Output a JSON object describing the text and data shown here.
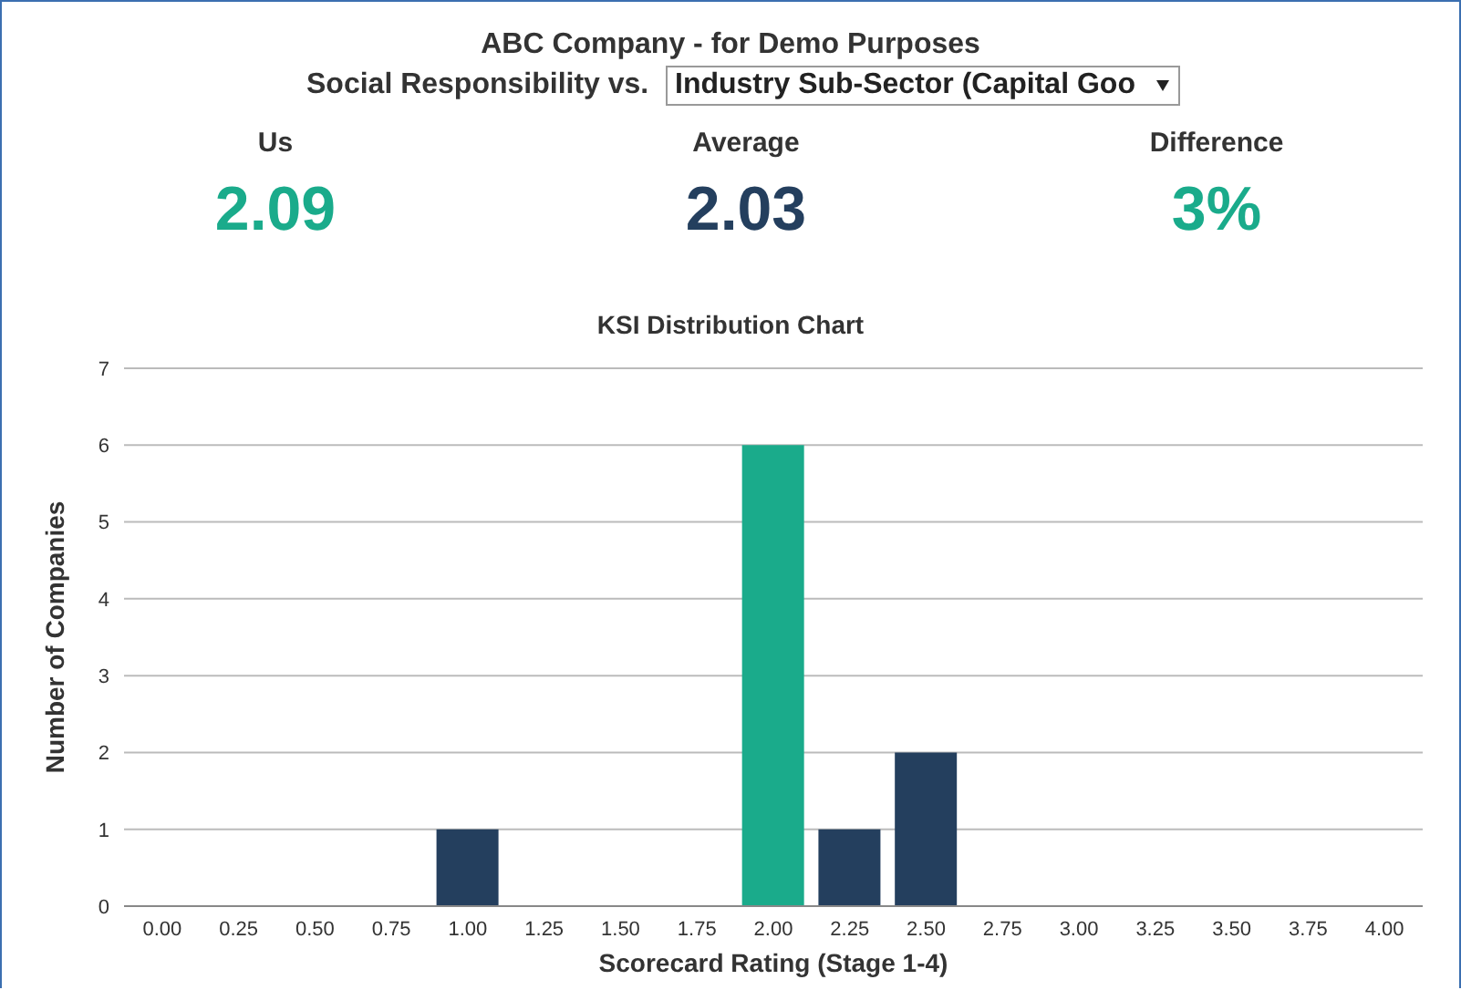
{
  "chart_data": {
    "type": "bar",
    "title": "KSI Distribution Chart",
    "xlabel": "Scorecard Rating (Stage 1-4)",
    "ylabel": "Number of Companies",
    "annotations": [
      "ABC Company - for Demo Purposes",
      "Social Responsibility vs.",
      "Industry Sub-Sector (Capital Goo",
      "Us",
      "2.09",
      "Average",
      "2.03",
      "Difference",
      "3%"
    ],
    "categories": [
      "0.00",
      "0.25",
      "0.50",
      "0.75",
      "1.00",
      "1.25",
      "1.50",
      "1.75",
      "2.00",
      "2.25",
      "2.50",
      "2.75",
      "3.00",
      "3.25",
      "3.50",
      "3.75",
      "4.00"
    ],
    "values": [
      0,
      0,
      0,
      0,
      1,
      0,
      0,
      0,
      6,
      1,
      2,
      0,
      0,
      0,
      0,
      0,
      0
    ],
    "colors": [
      "#243f5e",
      "#243f5e",
      "#243f5e",
      "#243f5e",
      "#243f5e",
      "#243f5e",
      "#243f5e",
      "#243f5e",
      "#1aab8b",
      "#243f5e",
      "#243f5e",
      "#243f5e",
      "#243f5e",
      "#243f5e",
      "#243f5e",
      "#243f5e",
      "#243f5e"
    ],
    "ylim": [
      0,
      7
    ],
    "yticks": [
      0,
      1,
      2,
      3,
      4,
      5,
      6,
      7
    ],
    "grid": "y",
    "legend": false
  }
}
